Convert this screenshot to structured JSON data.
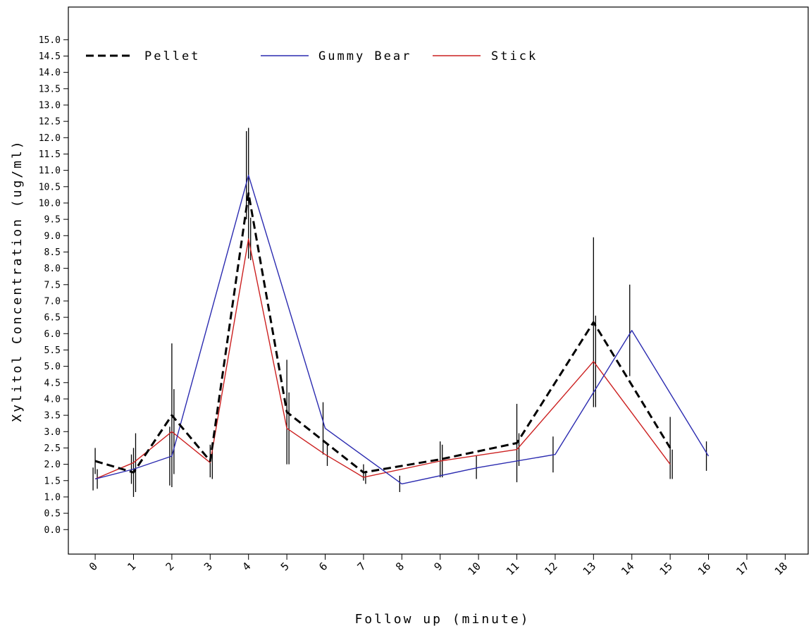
{
  "chart_data": {
    "type": "line",
    "title": "",
    "xlabel": "Follow up (minute)",
    "ylabel": "Xylitol Concentration (ug/ml)",
    "xlim": [
      -0.7,
      18.6
    ],
    "ylim": [
      -0.75,
      16.0
    ],
    "x_ticks": [
      "0",
      "1",
      "2",
      "3",
      "4",
      "5",
      "6",
      "7",
      "8",
      "9",
      "10",
      "11",
      "12",
      "13",
      "14",
      "15",
      "16",
      "17",
      "18"
    ],
    "y_ticks": [
      "0.0",
      "0.5",
      "1.0",
      "1.5",
      "2.0",
      "2.5",
      "3.0",
      "3.5",
      "4.0",
      "4.5",
      "5.0",
      "5.5",
      "6.0",
      "6.5",
      "7.0",
      "7.5",
      "8.0",
      "8.5",
      "9.0",
      "9.5",
      "10.0",
      "10.5",
      "11.0",
      "11.5",
      "12.0",
      "12.5",
      "13.0",
      "13.5",
      "14.0",
      "14.5",
      "15.0"
    ],
    "grid": false,
    "legend_position": "top-left",
    "series": [
      {
        "name": "Pellet",
        "color": "#000000",
        "style": "dashed",
        "x": [
          0,
          1,
          2,
          3,
          4,
          5,
          7,
          9,
          11,
          13,
          15
        ],
        "y": [
          2.1,
          1.75,
          3.5,
          2.1,
          10.3,
          3.6,
          1.75,
          2.15,
          2.65,
          6.35,
          2.5
        ],
        "err": [
          0.4,
          0.75,
          2.2,
          0.5,
          2.0,
          1.6,
          0.25,
          0.55,
          1.2,
          2.6,
          0.95
        ]
      },
      {
        "name": "Gummy Bear",
        "color": "#2b2bb0",
        "style": "solid",
        "x": [
          0,
          1,
          2,
          4,
          6,
          8,
          10,
          12,
          14,
          16
        ],
        "y": [
          1.55,
          1.85,
          2.25,
          10.85,
          3.1,
          1.4,
          1.9,
          2.3,
          6.1,
          2.25
        ],
        "err": [
          0.35,
          0.45,
          0.9,
          1.35,
          0.8,
          0.25,
          0.35,
          0.55,
          1.4,
          0.45
        ]
      },
      {
        "name": "Stick",
        "color": "#cc2020",
        "style": "solid",
        "x": [
          0,
          1,
          2,
          3,
          4,
          5,
          6,
          7,
          9,
          11,
          13,
          15
        ],
        "y": [
          1.55,
          2.05,
          3.0,
          2.05,
          8.9,
          3.1,
          2.3,
          1.6,
          2.1,
          2.45,
          5.15,
          2.0
        ],
        "err": [
          0.3,
          0.9,
          1.3,
          0.5,
          0.65,
          1.1,
          0.35,
          0.2,
          0.5,
          0.5,
          1.4,
          0.45
        ]
      }
    ]
  }
}
